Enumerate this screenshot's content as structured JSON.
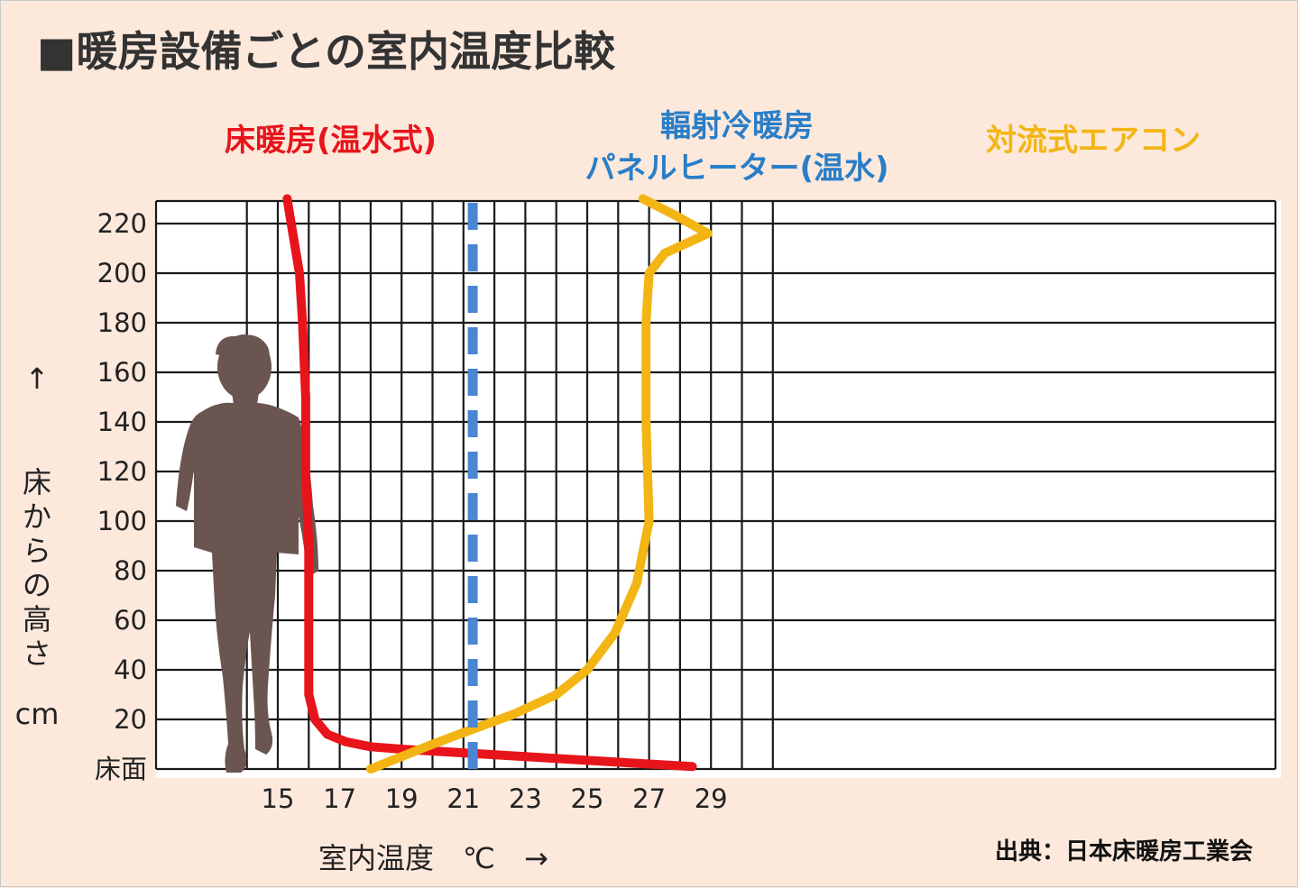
{
  "chart_data": {
    "type": "line",
    "title": "■暖房設備ごとの室内温度比較",
    "xlabel": "室内温度　℃　→",
    "ylabel_arrow": "↑",
    "ylabel": "床からの高さ",
    "ylabel_unit": "cm",
    "source": "出典：日本床暖房工業会",
    "xlim": [
      13,
      31
    ],
    "ylim": [
      0,
      230
    ],
    "x_ticks": [
      15,
      17,
      19,
      21,
      23,
      25,
      27,
      29
    ],
    "y_ticks": [
      {
        "value": 0,
        "label": "床面"
      },
      {
        "value": 20,
        "label": "20"
      },
      {
        "value": 40,
        "label": "40"
      },
      {
        "value": 60,
        "label": "60"
      },
      {
        "value": 80,
        "label": "80"
      },
      {
        "value": 100,
        "label": "100"
      },
      {
        "value": 120,
        "label": "120"
      },
      {
        "value": 140,
        "label": "140"
      },
      {
        "value": 160,
        "label": "160"
      },
      {
        "value": 180,
        "label": "180"
      },
      {
        "value": 200,
        "label": "200"
      },
      {
        "value": 220,
        "label": "220"
      }
    ],
    "grid": true,
    "series": [
      {
        "name": "床暖房(温水式)",
        "color": "#e8141b",
        "style": "solid",
        "points": [
          [
            28.4,
            1
          ],
          [
            27.0,
            2
          ],
          [
            25.0,
            3.5
          ],
          [
            23.0,
            5
          ],
          [
            21.0,
            6.5
          ],
          [
            19.0,
            8
          ],
          [
            18.0,
            9
          ],
          [
            17.2,
            11
          ],
          [
            16.6,
            14
          ],
          [
            16.2,
            20
          ],
          [
            16.0,
            30
          ],
          [
            16.0,
            60
          ],
          [
            16.0,
            90
          ],
          [
            15.9,
            120
          ],
          [
            15.9,
            150
          ],
          [
            15.8,
            180
          ],
          [
            15.7,
            200
          ],
          [
            15.5,
            215
          ],
          [
            15.3,
            230
          ]
        ]
      },
      {
        "name_lines": [
          "輻射冷暖房",
          "パネルヒーター(温水)"
        ],
        "color": "#4a86d4",
        "style": "dashed",
        "points": [
          [
            21.3,
            0
          ],
          [
            21.3,
            230
          ]
        ]
      },
      {
        "name": "対流式エアコン",
        "color": "#f2b514",
        "style": "solid",
        "points": [
          [
            18.0,
            0
          ],
          [
            20.0,
            10
          ],
          [
            21.5,
            17
          ],
          [
            22.6,
            22
          ],
          [
            24.0,
            30
          ],
          [
            25.0,
            40
          ],
          [
            25.9,
            55
          ],
          [
            26.6,
            75
          ],
          [
            27.0,
            100
          ],
          [
            26.9,
            140
          ],
          [
            26.9,
            180
          ],
          [
            27.0,
            200
          ],
          [
            27.5,
            208
          ],
          [
            28.9,
            216
          ],
          [
            27.9,
            223
          ],
          [
            26.8,
            230
          ]
        ]
      }
    ]
  }
}
